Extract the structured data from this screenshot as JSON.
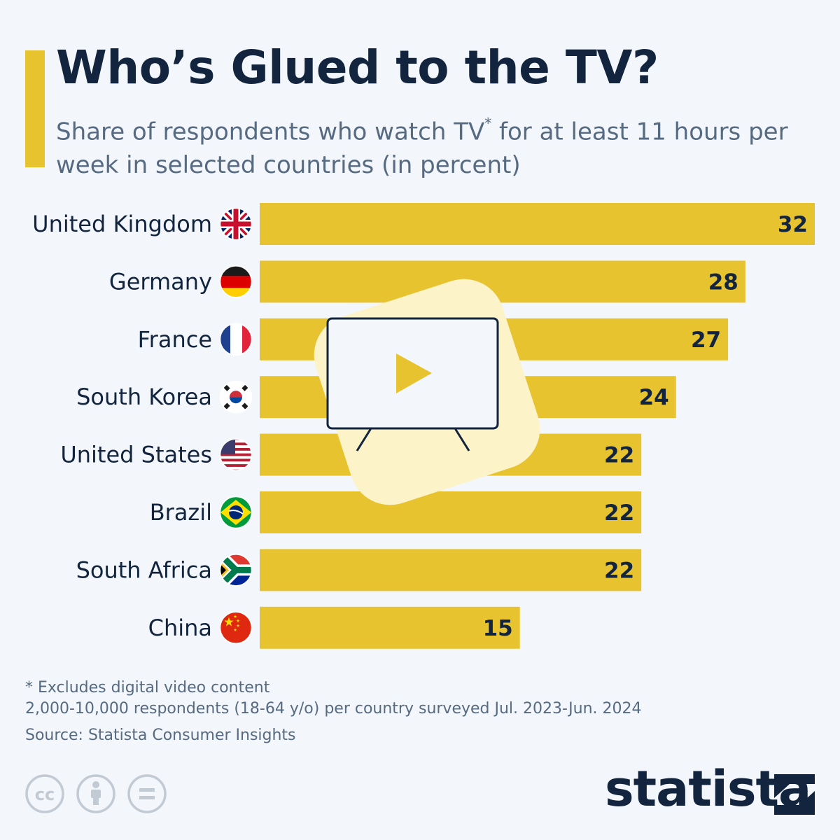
{
  "header": {
    "title": "Who’s Glued to the TV?",
    "subtitle_part1": "Share of respondents who watch TV",
    "subtitle_marker": "*",
    "subtitle_part2": " for at least 11 hours per week in selected countries (in percent)"
  },
  "colors": {
    "accent": "#e8c330",
    "bar": "#e8c330",
    "text_dark": "#13253e",
    "text_muted": "#566a81",
    "tv_badge": "#fdf3c8"
  },
  "chart_data": {
    "type": "bar",
    "orientation": "horizontal",
    "title": "Who’s Glued to the TV?",
    "categories": [
      "United Kingdom",
      "Germany",
      "France",
      "South Korea",
      "United States",
      "Brazil",
      "South Africa",
      "China"
    ],
    "values": [
      32,
      28,
      27,
      24,
      22,
      22,
      22,
      15
    ],
    "flags": [
      "flag-uk-icon",
      "flag-germany-icon",
      "flag-france-icon",
      "flag-south-korea-icon",
      "flag-usa-icon",
      "flag-brazil-icon",
      "flag-south-africa-icon",
      "flag-china-icon"
    ],
    "xlim": [
      0,
      32
    ],
    "grid": false,
    "unit": "percent",
    "decoration": "tv-icon"
  },
  "footer": {
    "note_1": "* Excludes digital video content",
    "note_2": "2,000-10,000 respondents (18-64 y/o) per country surveyed Jul. 2023-Jun. 2024",
    "source": "Source: Statista Consumer Insights",
    "brand": "statista",
    "license_icons": [
      "cc-icon",
      "attribution-icon",
      "no-derivatives-icon"
    ]
  }
}
